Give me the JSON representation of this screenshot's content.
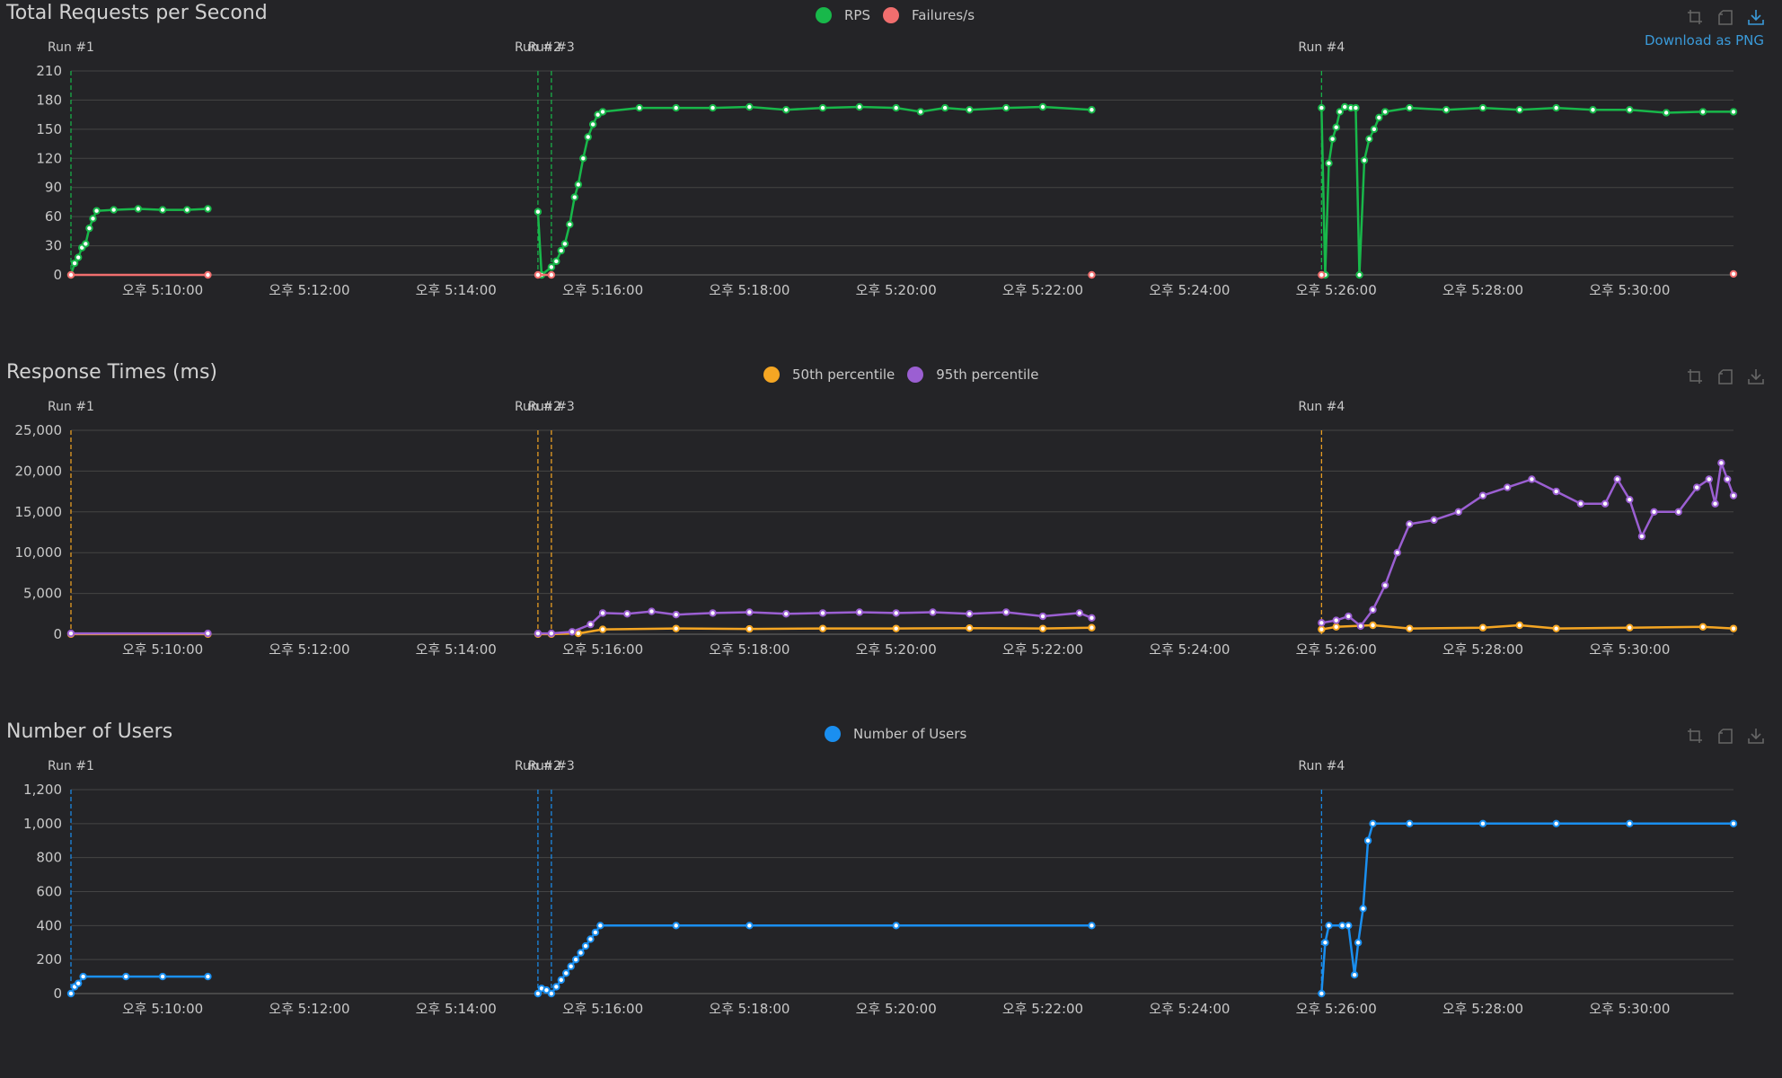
{
  "toolbox": {
    "download_label": "Download as PNG"
  },
  "panels": [
    {
      "title": "Total Requests per Second",
      "legend": [
        {
          "name": "RPS",
          "color": "#18b84a"
        },
        {
          "name": "Failures/s",
          "color": "#f06e6e"
        }
      ],
      "show_download_label": true
    },
    {
      "title": "Response Times (ms)",
      "legend": [
        {
          "name": "50th percentile",
          "color": "#f5a623"
        },
        {
          "name": "95th percentile",
          "color": "#9b5fd2"
        }
      ],
      "show_download_label": false
    },
    {
      "title": "Number of Users",
      "legend": [
        {
          "name": "Number of Users",
          "color": "#1a8ff0"
        }
      ],
      "show_download_label": false
    }
  ],
  "chart_data": [
    {
      "type": "line",
      "title": "Total Requests per Second",
      "x_ticks": [
        "오후 5:10:00",
        "오후 5:12:00",
        "오후 5:14:00",
        "오후 5:16:00",
        "오후 5:18:00",
        "오후 5:20:00",
        "오후 5:22:00",
        "오후 5:24:00",
        "오후 5:26:00",
        "오후 5:28:00",
        "오후 5:30:00"
      ],
      "x_range": [
        "5:08:45",
        "5:31:25"
      ],
      "y_ticks": [
        "0",
        "30",
        "60",
        "90",
        "120",
        "150",
        "180",
        "210"
      ],
      "ylim": [
        0,
        210
      ],
      "markers": [
        {
          "time": "5:08:45",
          "label": "Run #1"
        },
        {
          "time": "5:15:07",
          "label": "Run #2"
        },
        {
          "time": "5:15:18",
          "label": "Run #3"
        },
        {
          "time": "5:25:48",
          "label": "Run #4"
        }
      ],
      "marker_color": "#18b84a",
      "series": [
        {
          "name": "RPS",
          "color": "#18b84a",
          "points": [
            [
              "5:08:45",
              0
            ],
            [
              "5:08:48",
              12
            ],
            [
              "5:08:51",
              18
            ],
            [
              "5:08:54",
              28
            ],
            [
              "5:08:57",
              32
            ],
            [
              "5:09:00",
              48
            ],
            [
              "5:09:03",
              58
            ],
            [
              "5:09:06",
              66
            ],
            [
              "5:09:20",
              67
            ],
            [
              "5:09:40",
              68
            ],
            [
              "5:10:00",
              67
            ],
            [
              "5:10:20",
              67
            ],
            [
              "5:10:37",
              68
            ],
            [
              "5:15:07",
              65
            ],
            [
              "5:15:10",
              0
            ],
            [
              "5:15:18",
              8
            ],
            [
              "5:15:22",
              14
            ],
            [
              "5:15:26",
              25
            ],
            [
              "5:15:29",
              32
            ],
            [
              "5:15:33",
              52
            ],
            [
              "5:15:37",
              80
            ],
            [
              "5:15:40",
              93
            ],
            [
              "5:15:44",
              120
            ],
            [
              "5:15:48",
              142
            ],
            [
              "5:15:52",
              155
            ],
            [
              "5:15:56",
              165
            ],
            [
              "5:16:00",
              168
            ],
            [
              "5:16:30",
              172
            ],
            [
              "5:17:00",
              172
            ],
            [
              "5:17:30",
              172
            ],
            [
              "5:18:00",
              173
            ],
            [
              "5:18:30",
              170
            ],
            [
              "5:19:00",
              172
            ],
            [
              "5:19:30",
              173
            ],
            [
              "5:20:00",
              172
            ],
            [
              "5:20:20",
              168
            ],
            [
              "5:20:40",
              172
            ],
            [
              "5:21:00",
              170
            ],
            [
              "5:21:30",
              172
            ],
            [
              "5:22:00",
              173
            ],
            [
              "5:22:40",
              170
            ],
            [
              "5:25:48",
              172
            ],
            [
              "5:25:51",
              0
            ],
            [
              "5:25:54",
              115
            ],
            [
              "5:25:57",
              140
            ],
            [
              "5:26:00",
              152
            ],
            [
              "5:26:03",
              168
            ],
            [
              "5:26:07",
              173
            ],
            [
              "5:26:12",
              172
            ],
            [
              "5:26:16",
              172
            ],
            [
              "5:26:19",
              0
            ],
            [
              "5:26:23",
              118
            ],
            [
              "5:26:27",
              140
            ],
            [
              "5:26:31",
              150
            ],
            [
              "5:26:35",
              162
            ],
            [
              "5:26:40",
              168
            ],
            [
              "5:27:00",
              172
            ],
            [
              "5:27:30",
              170
            ],
            [
              "5:28:00",
              172
            ],
            [
              "5:28:30",
              170
            ],
            [
              "5:29:00",
              172
            ],
            [
              "5:29:30",
              170
            ],
            [
              "5:30:00",
              170
            ],
            [
              "5:30:30",
              167
            ],
            [
              "5:31:00",
              168
            ],
            [
              "5:31:25",
              168
            ]
          ]
        },
        {
          "name": "Failures/s",
          "color": "#f06e6e",
          "points": [
            [
              "5:08:45",
              0
            ],
            [
              "5:10:37",
              0
            ],
            [
              "5:15:07",
              0
            ],
            [
              "5:15:18",
              0
            ],
            [
              "5:22:40",
              0
            ],
            [
              "5:25:48",
              0
            ],
            [
              "5:31:25",
              1
            ]
          ]
        }
      ]
    },
    {
      "type": "line",
      "title": "Response Times (ms)",
      "x_ticks": [
        "오후 5:10:00",
        "오후 5:12:00",
        "오후 5:14:00",
        "오후 5:16:00",
        "오후 5:18:00",
        "오후 5:20:00",
        "오후 5:22:00",
        "오후 5:24:00",
        "오후 5:26:00",
        "오후 5:28:00",
        "오후 5:30:00"
      ],
      "x_range": [
        "5:08:45",
        "5:31:25"
      ],
      "y_ticks": [
        "0",
        "5,000",
        "10,000",
        "15,000",
        "20,000",
        "25,000"
      ],
      "ylim": [
        0,
        25000
      ],
      "markers": [
        {
          "time": "5:08:45",
          "label": "Run #1"
        },
        {
          "time": "5:15:07",
          "label": "Run #2"
        },
        {
          "time": "5:15:18",
          "label": "Run #3"
        },
        {
          "time": "5:25:48",
          "label": "Run #4"
        }
      ],
      "marker_color": "#f5a623",
      "series": [
        {
          "name": "50th percentile",
          "color": "#f5a623",
          "points": [
            [
              "5:08:45",
              10
            ],
            [
              "5:10:37",
              10
            ],
            [
              "5:15:07",
              10
            ],
            [
              "5:15:18",
              10
            ],
            [
              "5:15:40",
              100
            ],
            [
              "5:16:00",
              600
            ],
            [
              "5:17:00",
              700
            ],
            [
              "5:18:00",
              650
            ],
            [
              "5:19:00",
              700
            ],
            [
              "5:20:00",
              700
            ],
            [
              "5:21:00",
              750
            ],
            [
              "5:22:00",
              700
            ],
            [
              "5:22:40",
              800
            ],
            [
              "5:25:48",
              600
            ],
            [
              "5:26:00",
              900
            ],
            [
              "5:26:30",
              1100
            ],
            [
              "5:27:00",
              700
            ],
            [
              "5:28:00",
              800
            ],
            [
              "5:28:30",
              1100
            ],
            [
              "5:29:00",
              700
            ],
            [
              "5:30:00",
              800
            ],
            [
              "5:31:00",
              900
            ],
            [
              "5:31:25",
              700
            ]
          ]
        },
        {
          "name": "95th percentile",
          "color": "#9b5fd2",
          "points": [
            [
              "5:08:45",
              100
            ],
            [
              "5:10:37",
              100
            ],
            [
              "5:15:07",
              100
            ],
            [
              "5:15:18",
              100
            ],
            [
              "5:15:35",
              300
            ],
            [
              "5:15:50",
              1200
            ],
            [
              "5:16:00",
              2600
            ],
            [
              "5:16:20",
              2500
            ],
            [
              "5:16:40",
              2800
            ],
            [
              "5:17:00",
              2400
            ],
            [
              "5:17:30",
              2600
            ],
            [
              "5:18:00",
              2700
            ],
            [
              "5:18:30",
              2500
            ],
            [
              "5:19:00",
              2600
            ],
            [
              "5:19:30",
              2700
            ],
            [
              "5:20:00",
              2600
            ],
            [
              "5:20:30",
              2700
            ],
            [
              "5:21:00",
              2500
            ],
            [
              "5:21:30",
              2700
            ],
            [
              "5:22:00",
              2200
            ],
            [
              "5:22:30",
              2600
            ],
            [
              "5:22:40",
              2000
            ],
            [
              "5:25:48",
              1400
            ],
            [
              "5:26:00",
              1700
            ],
            [
              "5:26:10",
              2200
            ],
            [
              "5:26:20",
              1000
            ],
            [
              "5:26:30",
              3000
            ],
            [
              "5:26:40",
              6000
            ],
            [
              "5:26:50",
              10000
            ],
            [
              "5:27:00",
              13500
            ],
            [
              "5:27:20",
              14000
            ],
            [
              "5:27:40",
              15000
            ],
            [
              "5:28:00",
              17000
            ],
            [
              "5:28:20",
              18000
            ],
            [
              "5:28:40",
              19000
            ],
            [
              "5:29:00",
              17500
            ],
            [
              "5:29:20",
              16000
            ],
            [
              "5:29:40",
              16000
            ],
            [
              "5:29:50",
              19000
            ],
            [
              "5:30:00",
              16500
            ],
            [
              "5:30:10",
              12000
            ],
            [
              "5:30:20",
              15000
            ],
            [
              "5:30:40",
              15000
            ],
            [
              "5:30:55",
              18000
            ],
            [
              "5:31:05",
              19000
            ],
            [
              "5:31:10",
              16000
            ],
            [
              "5:31:15",
              21000
            ],
            [
              "5:31:20",
              19000
            ],
            [
              "5:31:25",
              17000
            ]
          ]
        }
      ]
    },
    {
      "type": "line",
      "title": "Number of Users",
      "x_ticks": [
        "오후 5:10:00",
        "오후 5:12:00",
        "오후 5:14:00",
        "오후 5:16:00",
        "오후 5:18:00",
        "오후 5:20:00",
        "오후 5:22:00",
        "오후 5:24:00",
        "오후 5:26:00",
        "오후 5:28:00",
        "오후 5:30:00"
      ],
      "x_range": [
        "5:08:45",
        "5:31:25"
      ],
      "y_ticks": [
        "0",
        "200",
        "400",
        "600",
        "800",
        "1,000",
        "1,200"
      ],
      "ylim": [
        0,
        1200
      ],
      "markers": [
        {
          "time": "5:08:45",
          "label": "Run #1"
        },
        {
          "time": "5:15:07",
          "label": "Run #2"
        },
        {
          "time": "5:15:18",
          "label": "Run #3"
        },
        {
          "time": "5:25:48",
          "label": "Run #4"
        }
      ],
      "marker_color": "#1a8ff0",
      "series": [
        {
          "name": "Number of Users",
          "color": "#1a8ff0",
          "points": [
            [
              "5:08:45",
              0
            ],
            [
              "5:08:48",
              40
            ],
            [
              "5:08:51",
              60
            ],
            [
              "5:08:55",
              100
            ],
            [
              "5:09:30",
              100
            ],
            [
              "5:10:00",
              100
            ],
            [
              "5:10:37",
              100
            ],
            [
              "5:15:07",
              0
            ],
            [
              "5:15:10",
              30
            ],
            [
              "5:15:14",
              20
            ],
            [
              "5:15:18",
              0
            ],
            [
              "5:15:22",
              40
            ],
            [
              "5:15:26",
              80
            ],
            [
              "5:15:30",
              120
            ],
            [
              "5:15:34",
              160
            ],
            [
              "5:15:38",
              200
            ],
            [
              "5:15:42",
              240
            ],
            [
              "5:15:46",
              280
            ],
            [
              "5:15:50",
              320
            ],
            [
              "5:15:54",
              360
            ],
            [
              "5:15:58",
              400
            ],
            [
              "5:17:00",
              400
            ],
            [
              "5:18:00",
              400
            ],
            [
              "5:20:00",
              400
            ],
            [
              "5:22:40",
              400
            ],
            [
              "5:25:48",
              0
            ],
            [
              "5:25:51",
              300
            ],
            [
              "5:25:54",
              400
            ],
            [
              "5:26:05",
              400
            ],
            [
              "5:26:10",
              400
            ],
            [
              "5:26:15",
              110
            ],
            [
              "5:26:18",
              300
            ],
            [
              "5:26:22",
              500
            ],
            [
              "5:26:26",
              900
            ],
            [
              "5:26:30",
              1000
            ],
            [
              "5:27:00",
              1000
            ],
            [
              "5:28:00",
              1000
            ],
            [
              "5:29:00",
              1000
            ],
            [
              "5:30:00",
              1000
            ],
            [
              "5:31:25",
              1000
            ]
          ]
        }
      ]
    }
  ]
}
